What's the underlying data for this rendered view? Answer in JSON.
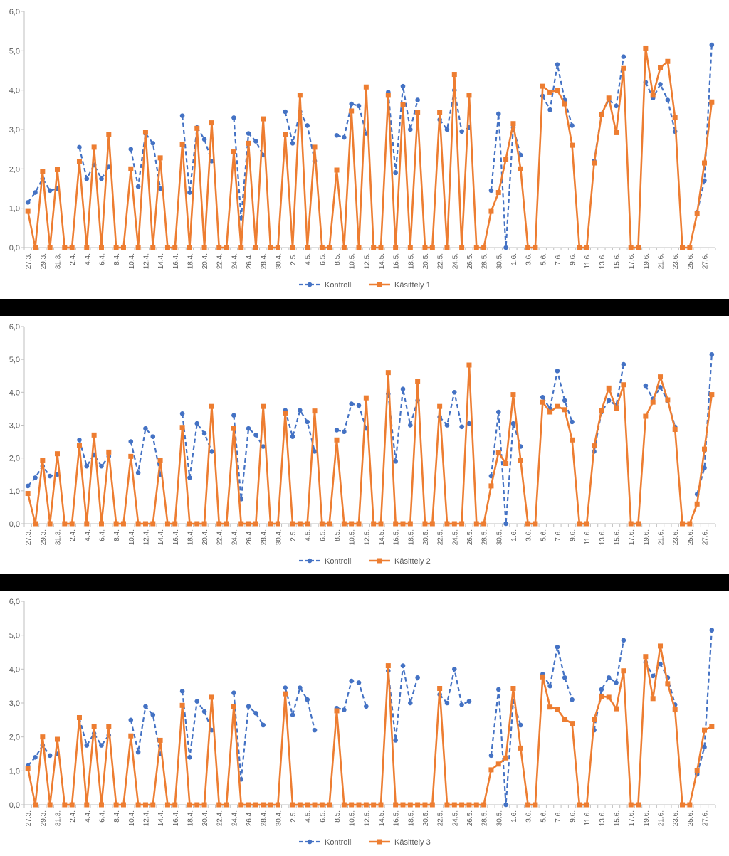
{
  "colors": {
    "kontrolli": "#4472C4",
    "kasittely": "#ED7D31",
    "axis": "#BFBFBF",
    "tick_text": "#595959"
  },
  "chart_data": [
    {
      "type": "line",
      "ylim": [
        0,
        6
      ],
      "yticks": [
        "0,0",
        "1,0",
        "2,0",
        "3,0",
        "4,0",
        "5,0",
        "6,0"
      ],
      "grid": false,
      "legend": "bottom",
      "xticklabels": [
        "27.3.",
        "29.3.",
        "31.3.",
        "2.4.",
        "4.4.",
        "6.4.",
        "8.4.",
        "10.4.",
        "12.4.",
        "14.4.",
        "16.4.",
        "18.4.",
        "20.4.",
        "22.4.",
        "24.4.",
        "26.4.",
        "28.4.",
        "30.4.",
        "2.5.",
        "4.5.",
        "6.5.",
        "8.5.",
        "10.5.",
        "12.5.",
        "14.5.",
        "16.5.",
        "18.5.",
        "20.5.",
        "22.5.",
        "24.5.",
        "26.5.",
        "28.5.",
        "30.5.",
        "1.6.",
        "3.6.",
        "5.6.",
        "7.6.",
        "9.6.",
        "11.6.",
        "13.6.",
        "15.6.",
        "17.6.",
        "19.6.",
        "21.6.",
        "23.6.",
        "25.6.",
        "27.6."
      ],
      "series": [
        {
          "name": "Kontrolli",
          "values": [
            1.15,
            1.4,
            1.75,
            1.45,
            1.5,
            null,
            null,
            2.55,
            1.75,
            2.1,
            1.75,
            2.05,
            null,
            null,
            2.5,
            1.55,
            2.9,
            2.65,
            1.5,
            null,
            null,
            3.35,
            1.4,
            3.05,
            2.75,
            2.2,
            null,
            null,
            3.3,
            0.75,
            2.9,
            2.7,
            2.35,
            null,
            null,
            3.45,
            2.65,
            3.45,
            3.1,
            2.2,
            null,
            null,
            2.85,
            2.8,
            3.65,
            3.6,
            2.9,
            null,
            null,
            3.95,
            1.9,
            4.1,
            3.0,
            3.75,
            null,
            null,
            3.25,
            3.0,
            4.0,
            2.95,
            3.05,
            null,
            null,
            1.45,
            3.4,
            0.0,
            3.05,
            2.35,
            null,
            null,
            3.85,
            3.5,
            4.65,
            3.75,
            3.1,
            null,
            null,
            2.2,
            3.4,
            3.75,
            3.6,
            4.85,
            null,
            null,
            4.2,
            3.8,
            4.15,
            3.75,
            2.95,
            null,
            null,
            0.9,
            1.7,
            5.15
          ]
        },
        {
          "name": "Käsittely 1",
          "values": [
            0.92,
            0.0,
            1.93,
            0.0,
            1.98,
            0.0,
            0.0,
            2.18,
            0.0,
            2.55,
            0.0,
            2.87,
            0.0,
            0.0,
            2.0,
            0.0,
            2.93,
            0.0,
            2.28,
            0.0,
            0.0,
            2.63,
            0.0,
            3.03,
            0.0,
            3.17,
            0.0,
            0.0,
            2.43,
            0.0,
            2.65,
            0.0,
            3.27,
            0.0,
            0.0,
            2.88,
            0.0,
            3.87,
            0.0,
            2.55,
            0.0,
            0.0,
            1.97,
            0.0,
            3.47,
            0.0,
            4.08,
            0.0,
            0.0,
            3.87,
            0.0,
            3.63,
            0.0,
            3.43,
            0.0,
            0.0,
            3.43,
            0.0,
            4.4,
            0.0,
            3.87,
            0.0,
            0.0,
            0.92,
            1.4,
            2.25,
            3.15,
            2.0,
            0.0,
            0.0,
            4.1,
            3.95,
            4.0,
            3.65,
            2.6,
            0.0,
            0.0,
            2.15,
            3.37,
            3.8,
            2.92,
            4.55,
            0.0,
            0.0,
            5.07,
            3.87,
            4.57,
            4.73,
            3.3,
            0.0,
            0.0,
            0.87,
            2.15,
            3.7
          ]
        }
      ]
    },
    {
      "type": "line",
      "ylim": [
        0,
        6
      ],
      "yticks": [
        "0,0",
        "1,0",
        "2,0",
        "3,0",
        "4,0",
        "5,0",
        "6,0"
      ],
      "grid": false,
      "legend": "bottom",
      "xticklabels": [
        "27.3.",
        "29.3.",
        "31.3.",
        "2.4.",
        "4.4.",
        "6.4.",
        "8.4.",
        "10.4.",
        "12.4.",
        "14.4.",
        "16.4.",
        "18.4.",
        "20.4.",
        "22.4.",
        "24.4.",
        "26.4.",
        "28.4.",
        "30.4.",
        "2.5.",
        "4.5.",
        "6.5.",
        "8.5.",
        "10.5.",
        "12.5.",
        "14.5.",
        "16.5.",
        "18.5.",
        "20.5.",
        "22.5.",
        "24.5.",
        "26.5.",
        "28.5.",
        "30.5.",
        "1.6.",
        "3.6.",
        "5.6.",
        "7.6.",
        "9.6.",
        "11.6.",
        "13.6.",
        "15.6.",
        "17.6.",
        "19.6.",
        "21.6.",
        "23.6.",
        "25.6.",
        "27.6."
      ],
      "series": [
        {
          "name": "Kontrolli",
          "values": [
            1.15,
            1.4,
            1.75,
            1.45,
            1.5,
            null,
            null,
            2.55,
            1.75,
            2.1,
            1.75,
            2.05,
            null,
            null,
            2.5,
            1.55,
            2.9,
            2.65,
            1.5,
            null,
            null,
            3.35,
            1.4,
            3.05,
            2.75,
            2.2,
            null,
            null,
            3.3,
            0.75,
            2.9,
            2.7,
            2.35,
            null,
            null,
            3.45,
            2.65,
            3.45,
            3.1,
            2.2,
            null,
            null,
            2.85,
            2.8,
            3.65,
            3.6,
            2.9,
            null,
            null,
            3.95,
            1.9,
            4.1,
            3.0,
            3.75,
            null,
            null,
            3.25,
            3.0,
            4.0,
            2.95,
            3.05,
            null,
            null,
            1.45,
            3.4,
            0.0,
            3.05,
            2.35,
            null,
            null,
            3.85,
            3.5,
            4.65,
            3.75,
            3.1,
            null,
            null,
            2.2,
            3.4,
            3.75,
            3.6,
            4.85,
            null,
            null,
            4.2,
            3.8,
            4.15,
            3.75,
            2.95,
            null,
            null,
            0.9,
            1.7,
            5.15
          ]
        },
        {
          "name": "Käsittely 2",
          "values": [
            0.92,
            0.0,
            1.93,
            0.0,
            2.13,
            0.0,
            0.0,
            2.38,
            0.0,
            2.7,
            0.0,
            2.18,
            0.0,
            0.0,
            2.05,
            0.0,
            0.0,
            0.0,
            1.93,
            0.0,
            0.0,
            2.93,
            0.0,
            0.0,
            0.0,
            3.57,
            0.0,
            0.0,
            2.9,
            0.0,
            0.0,
            0.0,
            3.57,
            0.0,
            0.0,
            3.37,
            0.0,
            0.0,
            0.0,
            3.43,
            0.0,
            0.0,
            2.55,
            0.0,
            0.0,
            0.0,
            3.83,
            0.0,
            0.0,
            4.6,
            0.0,
            0.0,
            0.0,
            4.33,
            0.0,
            0.0,
            3.57,
            0.0,
            0.0,
            0.0,
            4.83,
            0.0,
            0.0,
            1.15,
            2.17,
            1.83,
            3.93,
            1.93,
            0.0,
            0.0,
            3.7,
            3.4,
            3.57,
            3.47,
            2.55,
            0.0,
            0.0,
            2.37,
            3.45,
            4.13,
            3.5,
            4.23,
            0.0,
            0.0,
            3.27,
            3.7,
            4.47,
            3.77,
            2.87,
            0.0,
            0.0,
            0.6,
            2.27,
            3.93
          ]
        }
      ]
    },
    {
      "type": "line",
      "ylim": [
        0,
        6
      ],
      "yticks": [
        "0,0",
        "1,0",
        "2,0",
        "3,0",
        "4,0",
        "5,0",
        "6,0"
      ],
      "grid": false,
      "legend": "bottom",
      "xticklabels": [
        "27.3.",
        "29.3.",
        "31.3.",
        "2.4.",
        "4.4.",
        "6.4.",
        "8.4.",
        "10.4.",
        "12.4.",
        "14.4.",
        "16.4.",
        "18.4.",
        "20.4.",
        "22.4.",
        "24.4.",
        "26.4.",
        "28.4.",
        "30.4.",
        "2.5.",
        "4.5.",
        "6.5.",
        "8.5.",
        "10.5.",
        "12.5.",
        "14.5.",
        "16.5.",
        "18.5.",
        "20.5.",
        "22.5.",
        "24.5.",
        "26.5.",
        "28.5.",
        "30.5.",
        "1.6.",
        "3.6.",
        "5.6.",
        "7.6.",
        "9.6.",
        "11.6.",
        "13.6.",
        "15.6.",
        "17.6.",
        "19.6.",
        "21.6.",
        "23.6.",
        "25.6.",
        "27.6."
      ],
      "series": [
        {
          "name": "Kontrolli",
          "values": [
            1.15,
            1.4,
            1.75,
            1.45,
            1.5,
            null,
            null,
            2.55,
            1.75,
            2.1,
            1.75,
            2.05,
            null,
            null,
            2.5,
            1.55,
            2.9,
            2.65,
            1.5,
            null,
            null,
            3.35,
            1.4,
            3.05,
            2.75,
            2.2,
            null,
            null,
            3.3,
            0.75,
            2.9,
            2.7,
            2.35,
            null,
            null,
            3.45,
            2.65,
            3.45,
            3.1,
            2.2,
            null,
            null,
            2.85,
            2.8,
            3.65,
            3.6,
            2.9,
            null,
            null,
            3.95,
            1.9,
            4.1,
            3.0,
            3.75,
            null,
            null,
            3.25,
            3.0,
            4.0,
            2.95,
            3.05,
            null,
            null,
            1.45,
            3.4,
            0.0,
            3.05,
            2.35,
            null,
            null,
            3.85,
            3.5,
            4.65,
            3.75,
            3.1,
            null,
            null,
            2.2,
            3.4,
            3.75,
            3.6,
            4.85,
            null,
            null,
            4.2,
            3.8,
            4.15,
            3.75,
            2.95,
            null,
            null,
            0.9,
            1.7,
            5.15
          ]
        },
        {
          "name": "Käsittely 3",
          "values": [
            1.08,
            0.0,
            2.0,
            0.0,
            1.93,
            0.0,
            0.0,
            2.57,
            0.0,
            2.3,
            0.0,
            2.3,
            0.0,
            0.0,
            2.03,
            0.0,
            0.0,
            0.0,
            1.9,
            0.0,
            0.0,
            2.93,
            0.0,
            0.0,
            0.0,
            3.17,
            0.0,
            0.0,
            2.9,
            0.0,
            0.0,
            0.0,
            0.0,
            0.0,
            0.0,
            3.27,
            0.0,
            0.0,
            0.0,
            0.0,
            0.0,
            0.0,
            2.77,
            0.0,
            0.0,
            0.0,
            0.0,
            0.0,
            0.0,
            4.1,
            0.0,
            0.0,
            0.0,
            0.0,
            0.0,
            0.0,
            3.43,
            0.0,
            0.0,
            0.0,
            0.0,
            0.0,
            0.0,
            1.03,
            1.2,
            1.38,
            3.43,
            1.67,
            0.0,
            0.0,
            3.77,
            2.88,
            2.82,
            2.52,
            2.4,
            0.0,
            0.0,
            2.52,
            3.2,
            3.17,
            2.83,
            3.95,
            0.0,
            0.0,
            4.37,
            3.13,
            4.68,
            3.57,
            2.8,
            0.0,
            0.0,
            1.0,
            2.2,
            2.3
          ]
        }
      ]
    }
  ]
}
